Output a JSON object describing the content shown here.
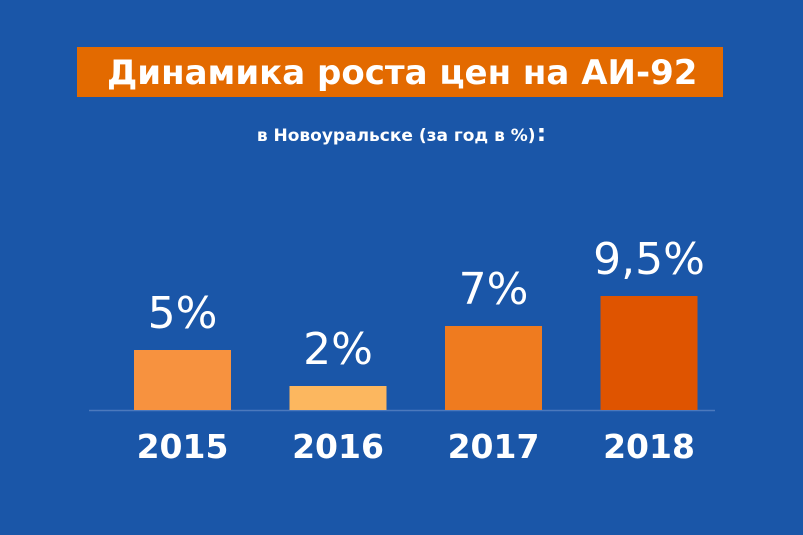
{
  "title": "Динамика роста цен на АИ-92",
  "subtitle": "в Новоуральске (за год в %)",
  "subtitle_tail": ":",
  "colors": {
    "background": "#1a56a8",
    "title_banner": "#e36a00",
    "text": "#ffffff",
    "baseline": "#4b79bd",
    "bars": [
      "#f7923f",
      "#fcb75f",
      "#ef7b1f",
      "#df5400"
    ]
  },
  "chart_data": {
    "type": "bar",
    "title": "Динамика роста цен на АИ-92",
    "subtitle": "в Новоуральске (за год в %)",
    "categories": [
      "2015",
      "2016",
      "2017",
      "2018"
    ],
    "values": [
      5,
      2,
      7,
      9.5
    ],
    "data_labels": [
      "5%",
      "2%",
      "7%",
      "9,5%"
    ],
    "ylim": [
      0,
      10
    ],
    "grid": false,
    "xlabel": "",
    "ylabel": ""
  }
}
